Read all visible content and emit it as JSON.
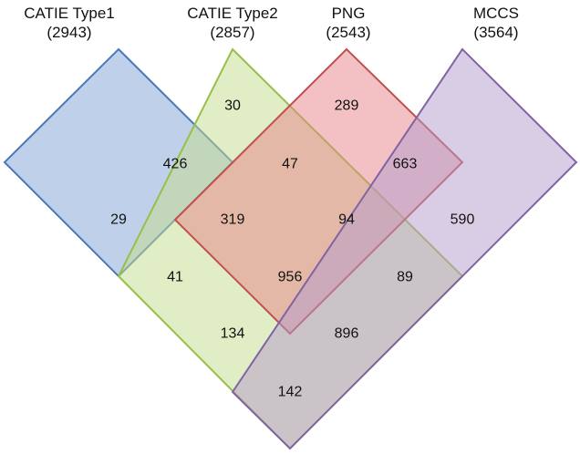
{
  "sets": [
    {
      "name": "CATIE Type1",
      "count": "(2943)",
      "fill": "#7fa3d6",
      "stroke": "#4a78b8"
    },
    {
      "name": "CATIE Type2",
      "count": "(2857)",
      "fill": "#c4dc8c",
      "stroke": "#98bf4a"
    },
    {
      "name": "PNG",
      "count": "(2543)",
      "fill": "#e8848a",
      "stroke": "#c0504d"
    },
    {
      "name": "MCCS",
      "count": "(3564)",
      "fill": "#b49ccc",
      "stroke": "#8064a2"
    }
  ],
  "regions": [
    {
      "value": "30"
    },
    {
      "value": "289"
    },
    {
      "value": "426"
    },
    {
      "value": "47"
    },
    {
      "value": "663"
    },
    {
      "value": "29"
    },
    {
      "value": "319"
    },
    {
      "value": "94"
    },
    {
      "value": "590"
    },
    {
      "value": "41"
    },
    {
      "value": "956"
    },
    {
      "value": "89"
    },
    {
      "value": "134"
    },
    {
      "value": "896"
    },
    {
      "value": "142"
    }
  ]
}
